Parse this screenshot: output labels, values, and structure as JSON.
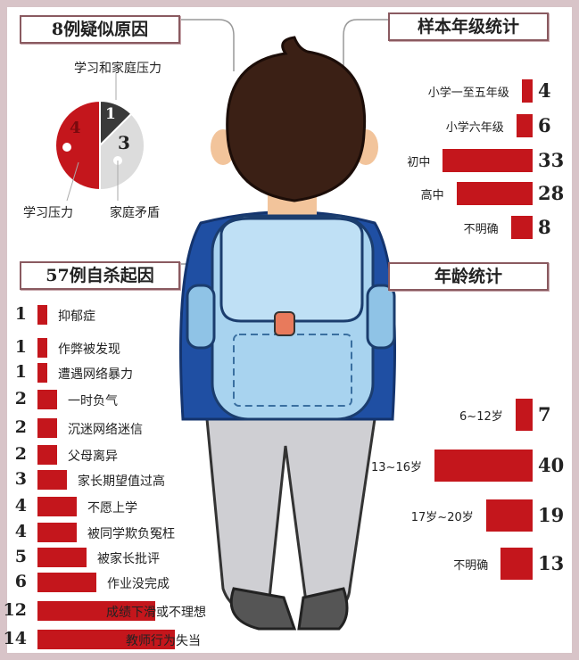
{
  "colors": {
    "bar": "#c4161c",
    "pie_red": "#c4161c",
    "pie_dark": "#3a3a3a",
    "pie_gray": "#dcdcdc",
    "frame": "#d8c4c8"
  },
  "illustration": "boy-with-backpack",
  "chart_data": [
    {
      "type": "pie",
      "title": "8例疑似原因",
      "slices": [
        {
          "label": "学习压力",
          "value": 4
        },
        {
          "label": "学习和家庭压力",
          "value": 1
        },
        {
          "label": "家庭矛盾",
          "value": 3
        }
      ]
    },
    {
      "type": "bar",
      "title": "样本年级统计",
      "orientation": "horizontal",
      "categories": [
        "小学一至五年级",
        "小学六年级",
        "初中",
        "高中",
        "不明确"
      ],
      "values": [
        4,
        6,
        33,
        28,
        8
      ]
    },
    {
      "type": "bar",
      "title": "年龄统计",
      "orientation": "horizontal",
      "categories": [
        "6~12岁",
        "13~16岁",
        "17岁~20岁",
        "不明确"
      ],
      "values": [
        7,
        40,
        19,
        13
      ]
    },
    {
      "type": "bar",
      "title": "57例自杀起因",
      "orientation": "horizontal",
      "categories": [
        "抑郁症",
        "作弊被发现",
        "遭遇网络暴力",
        "一时负气",
        "沉迷网络迷信",
        "父母离异",
        "家长期望值过高",
        "不愿上学",
        "被同学欺负冤枉",
        "被家长批评",
        "作业没完成",
        "成绩下滑或不理想",
        "教师行为失当"
      ],
      "values": [
        1,
        1,
        1,
        2,
        2,
        2,
        3,
        4,
        4,
        5,
        6,
        12,
        14
      ]
    }
  ]
}
